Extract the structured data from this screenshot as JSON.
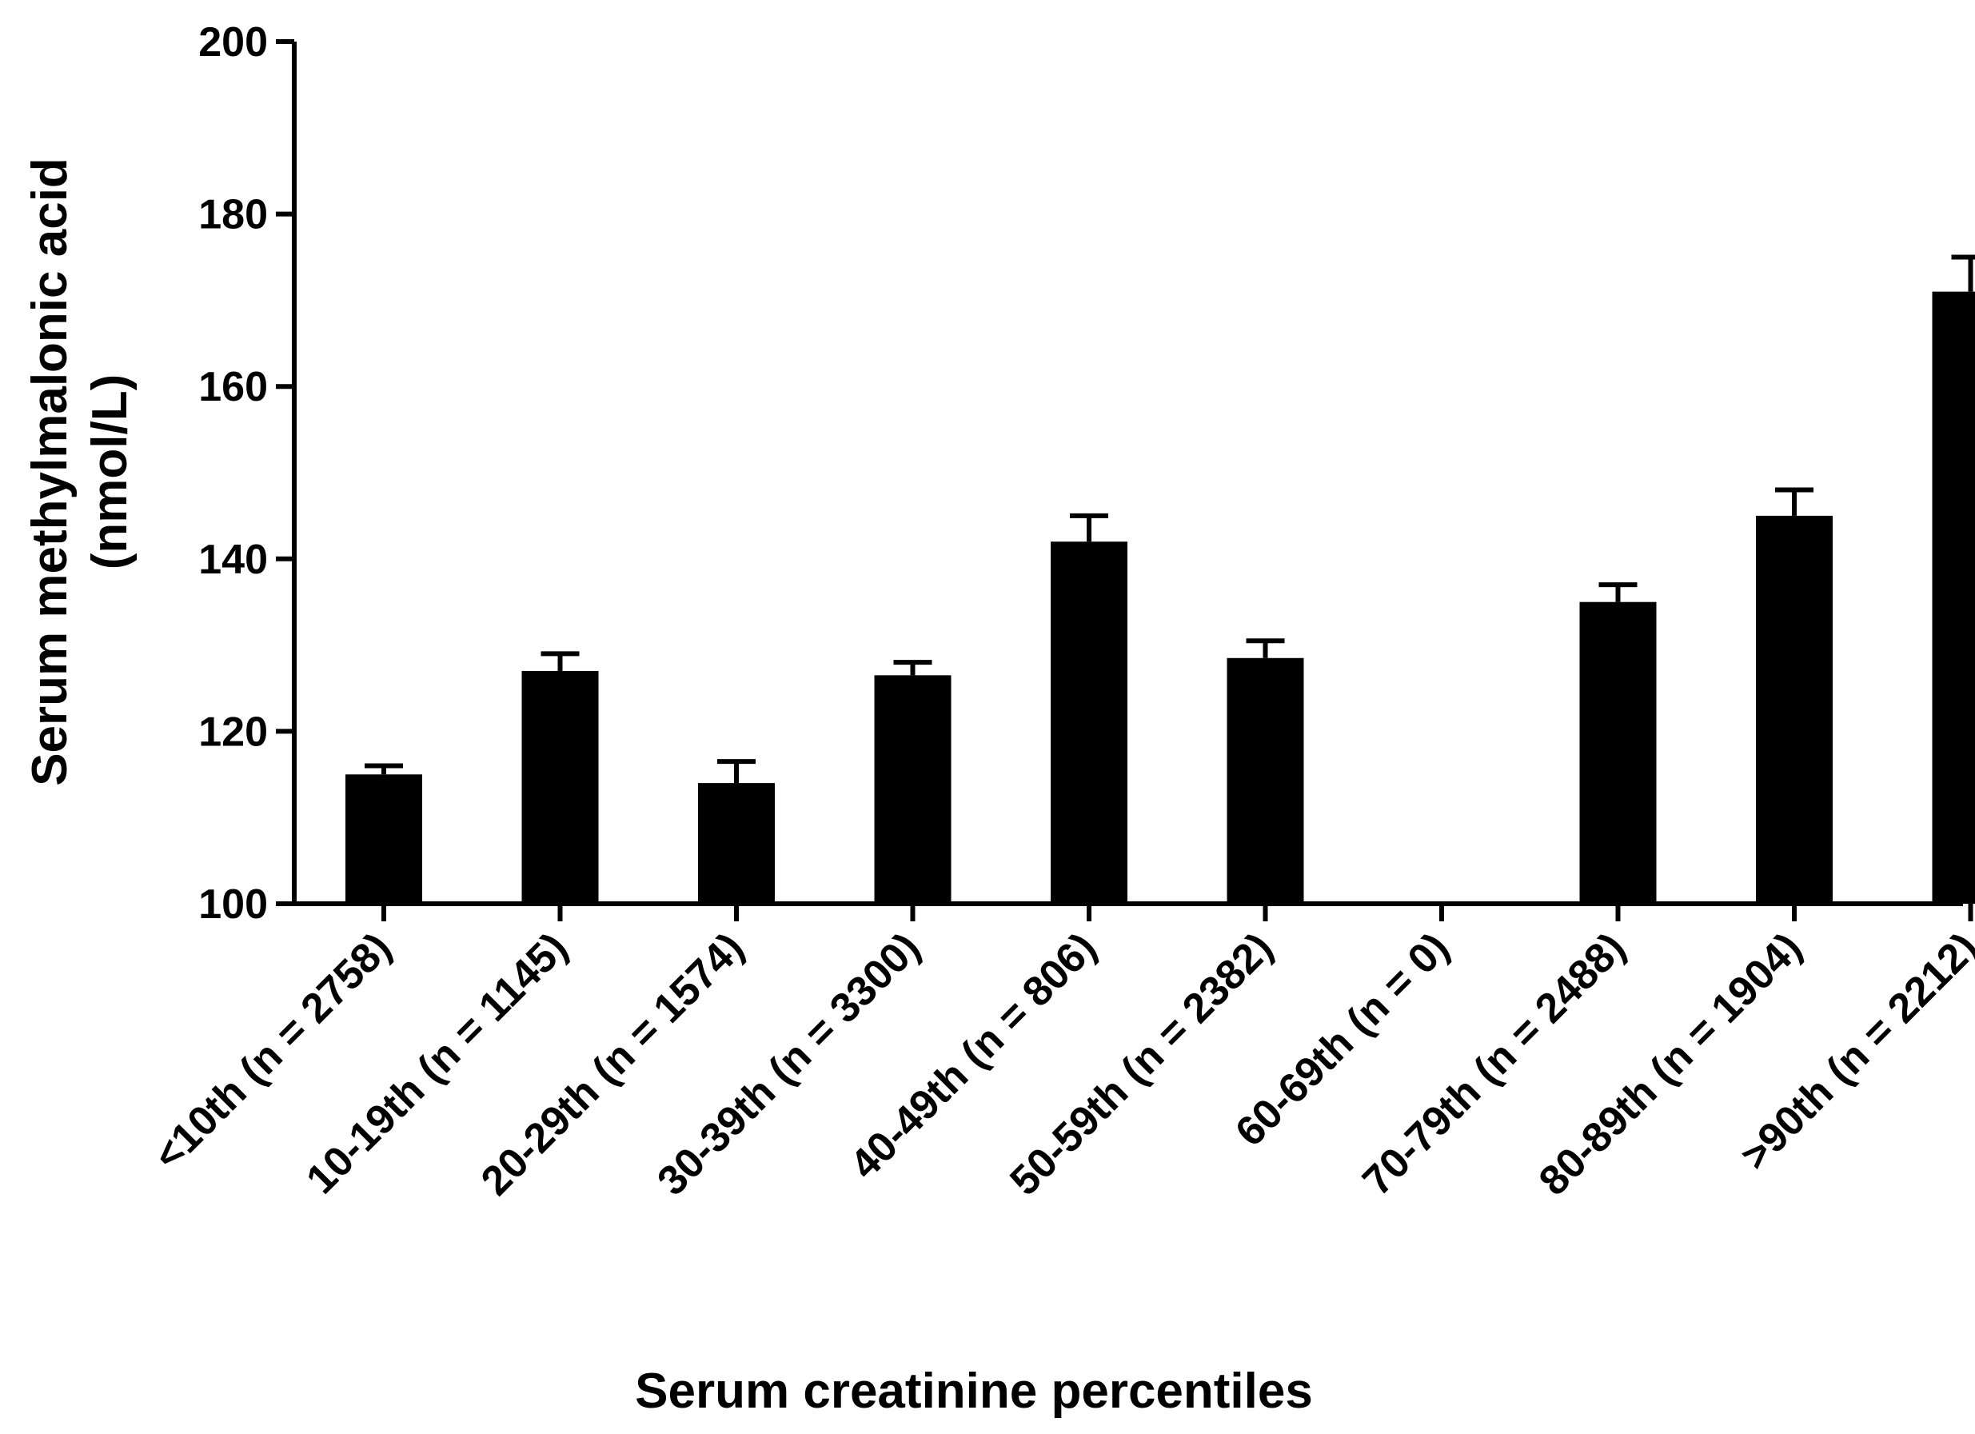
{
  "chart_data": {
    "type": "bar",
    "xlabel": "Serum creatinine percentiles",
    "ylabel_line1": "Serum methylmalonic acid",
    "ylabel_line2": "(nmol/L)",
    "ylim": [
      100,
      200
    ],
    "yticks": [
      100,
      120,
      140,
      160,
      180,
      200
    ],
    "categories": [
      "<10th (n = 2758)",
      "10-19th (n = 1145)",
      "20-29th (n = 1574)",
      "30-39th (n = 3300)",
      "40-49th (n = 806)",
      "50-59th (n = 2382)",
      "60-69th (n = 0)",
      "70-79th (n = 2488)",
      "80-89th (n = 1904)",
      ">90th (n = 2212)"
    ],
    "values": [
      115,
      127,
      114,
      126.5,
      142,
      128.5,
      null,
      135,
      145,
      171
    ],
    "error_upper": [
      116,
      129,
      116.5,
      128,
      145,
      130.5,
      null,
      137,
      148,
      175
    ],
    "bar_color": "#000000",
    "grid": false
  }
}
